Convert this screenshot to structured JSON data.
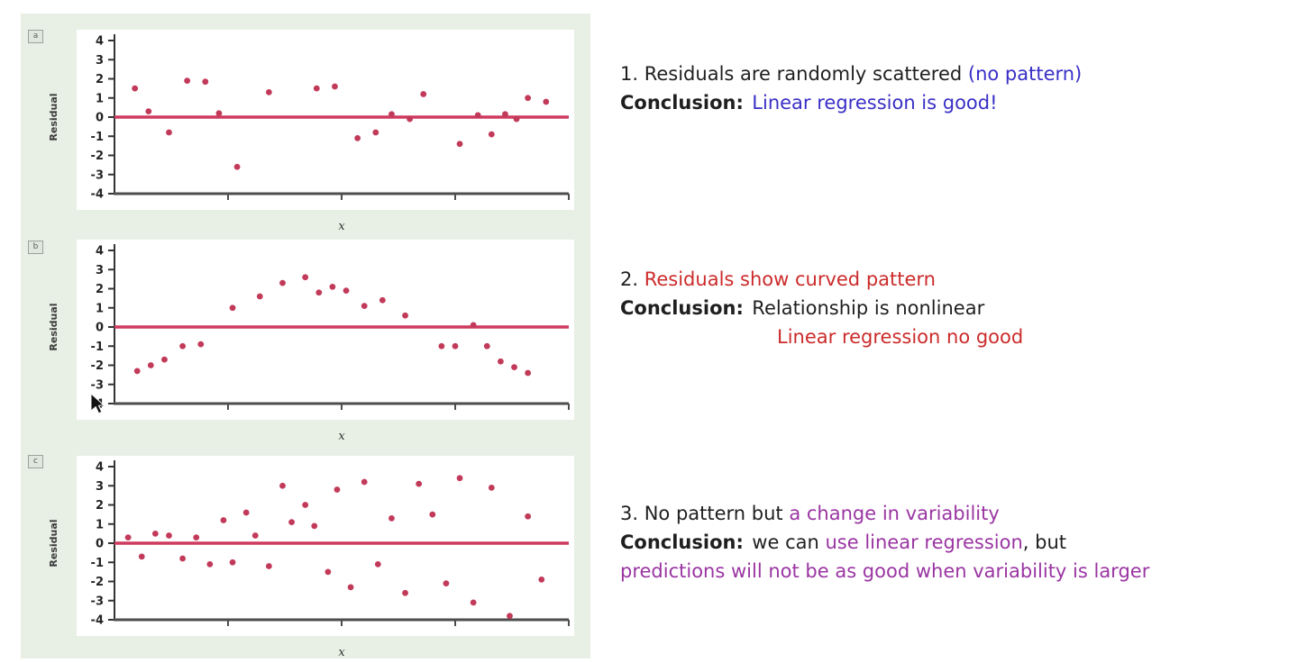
{
  "colors": {
    "blue": "#392fc6",
    "red": "#cc2b2b",
    "purple": "#9a35a2",
    "black": "#1f1f1f",
    "zero_line": "#cf3a5f",
    "point": "#c23a59",
    "panel_bg": "#e8f0e6"
  },
  "chart_data": [
    {
      "type": "scatter",
      "corner_label": "a",
      "title": "",
      "ylabel": "Residual",
      "xlabel": "x",
      "ylim": [
        -4,
        4
      ],
      "xlim": [
        0,
        10
      ],
      "yticks": [
        4,
        3,
        2,
        1,
        0,
        -1,
        -2,
        -3,
        -4
      ],
      "zero_line": 0,
      "pattern": "random scatter, no pattern",
      "points": [
        [
          0.45,
          1.5
        ],
        [
          0.75,
          0.3
        ],
        [
          1.2,
          -0.8
        ],
        [
          1.6,
          1.9
        ],
        [
          2.0,
          1.85
        ],
        [
          2.3,
          0.2
        ],
        [
          2.7,
          -2.6
        ],
        [
          3.4,
          1.3
        ],
        [
          4.45,
          1.5
        ],
        [
          4.85,
          1.6
        ],
        [
          5.35,
          -1.1
        ],
        [
          5.75,
          -0.8
        ],
        [
          6.1,
          0.15
        ],
        [
          6.5,
          -0.1
        ],
        [
          6.8,
          1.2
        ],
        [
          7.6,
          -1.4
        ],
        [
          8.0,
          0.1
        ],
        [
          8.3,
          -0.9
        ],
        [
          8.6,
          0.15
        ],
        [
          8.85,
          -0.1
        ],
        [
          9.1,
          1.0
        ],
        [
          9.5,
          0.8
        ]
      ]
    },
    {
      "type": "scatter",
      "corner_label": "b",
      "title": "",
      "ylabel": "Residual",
      "xlabel": "x",
      "ylim": [
        -4,
        4
      ],
      "xlim": [
        0,
        10
      ],
      "yticks": [
        4,
        3,
        2,
        1,
        0,
        -1,
        -2,
        -3,
        -4
      ],
      "zero_line": 0,
      "pattern": "curved (inverted-U) pattern",
      "points": [
        [
          0.5,
          -2.3
        ],
        [
          0.8,
          -2.0
        ],
        [
          1.1,
          -1.7
        ],
        [
          1.5,
          -1.0
        ],
        [
          1.9,
          -0.9
        ],
        [
          2.6,
          1.0
        ],
        [
          3.2,
          1.6
        ],
        [
          3.7,
          2.3
        ],
        [
          4.2,
          2.6
        ],
        [
          4.5,
          1.8
        ],
        [
          4.8,
          2.1
        ],
        [
          5.1,
          1.9
        ],
        [
          5.5,
          1.1
        ],
        [
          5.9,
          1.4
        ],
        [
          6.4,
          0.6
        ],
        [
          7.2,
          -1.0
        ],
        [
          7.5,
          -1.0
        ],
        [
          7.9,
          0.1
        ],
        [
          8.2,
          -1.0
        ],
        [
          8.5,
          -1.8
        ],
        [
          8.8,
          -2.1
        ],
        [
          9.1,
          -2.4
        ]
      ]
    },
    {
      "type": "scatter",
      "corner_label": "c",
      "title": "",
      "ylabel": "Residual",
      "xlabel": "x",
      "ylim": [
        -4,
        4
      ],
      "xlim": [
        0,
        10
      ],
      "yticks": [
        4,
        3,
        2,
        1,
        0,
        -1,
        -2,
        -3,
        -4
      ],
      "zero_line": 0,
      "pattern": "no pattern but increasing variability (fan shape)",
      "points": [
        [
          0.3,
          0.3
        ],
        [
          0.6,
          -0.7
        ],
        [
          0.9,
          0.5
        ],
        [
          1.2,
          0.4
        ],
        [
          1.5,
          -0.8
        ],
        [
          1.8,
          0.3
        ],
        [
          2.1,
          -1.1
        ],
        [
          2.4,
          1.2
        ],
        [
          2.6,
          -1.0
        ],
        [
          2.9,
          1.6
        ],
        [
          3.1,
          0.4
        ],
        [
          3.4,
          -1.2
        ],
        [
          3.7,
          3.0
        ],
        [
          3.9,
          1.1
        ],
        [
          4.2,
          2.0
        ],
        [
          4.4,
          0.9
        ],
        [
          4.7,
          -1.5
        ],
        [
          4.9,
          2.8
        ],
        [
          5.2,
          -2.3
        ],
        [
          5.5,
          3.2
        ],
        [
          5.8,
          -1.1
        ],
        [
          6.1,
          1.3
        ],
        [
          6.4,
          -2.6
        ],
        [
          6.7,
          3.1
        ],
        [
          7.0,
          1.5
        ],
        [
          7.3,
          -2.1
        ],
        [
          7.6,
          3.4
        ],
        [
          7.9,
          -3.1
        ],
        [
          8.3,
          2.9
        ],
        [
          8.7,
          -3.8
        ],
        [
          9.1,
          1.4
        ],
        [
          9.4,
          -1.9
        ]
      ]
    }
  ],
  "notes": {
    "n1": {
      "line1_black": "1. Residuals are randomly scattered ",
      "line1_blue": "(no pattern)",
      "conclusion_label": "Conclusion:",
      "conclusion_blue": "Linear regression is good!"
    },
    "n2": {
      "line1_black": "2. ",
      "line1_red": "Residuals show curved pattern",
      "conclusion_label": "Conclusion:",
      "conclusion_black": "Relationship is nonlinear",
      "line3_red": "Linear regression no good"
    },
    "n3": {
      "line1_black": "3. No pattern but ",
      "line1_purple": "a change in variability",
      "conclusion_label": "Conclusion:",
      "c_black1": "we can ",
      "c_purple1": "use linear regression",
      "c_black2": ", but",
      "line3_purple": "predictions will not be as good when variability is larger"
    }
  }
}
